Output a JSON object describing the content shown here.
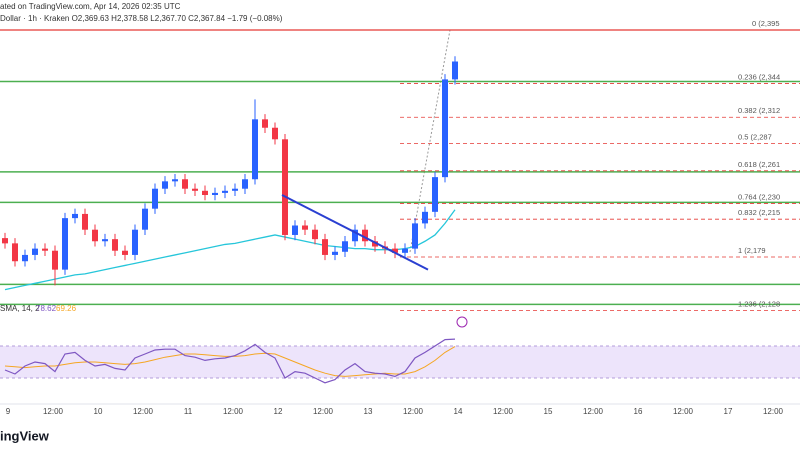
{
  "header": {
    "publisher": "ated on TradingView.com, Apr 14, 2026 02:35 UTC",
    "symbol": "Dollar · 1h · Kraken  O2,369.63 H2,378.58 L2,367.70 C2,367.84 −1.79 (−0.08%)",
    "logo": "ingView"
  },
  "chart_data": {
    "type": "candlestick",
    "up_color": "#2962ff",
    "down_color": "#f23645",
    "ylim": [
      2121,
      2414
    ],
    "open": [
      2197,
      2192,
      2175,
      2181,
      2187,
      2185,
      2167,
      2216,
      2220,
      2205,
      2194,
      2196,
      2185,
      2181,
      2205,
      2225,
      2244,
      2251,
      2253,
      2244,
      2242,
      2238,
      2240,
      2242,
      2244,
      2253,
      2310,
      2302,
      2291,
      2200,
      2209,
      2205,
      2196,
      2181,
      2184,
      2194,
      2205,
      2194,
      2189,
      2187,
      2183,
      2187,
      2211,
      2222,
      2255,
      2348
    ],
    "high": [
      2202,
      2197,
      2186,
      2192,
      2192,
      2190,
      2221,
      2225,
      2225,
      2210,
      2201,
      2201,
      2190,
      2210,
      2230,
      2249,
      2256,
      2258,
      2258,
      2249,
      2247,
      2245,
      2247,
      2249,
      2258,
      2329,
      2315,
      2307,
      2296,
      2214,
      2214,
      2210,
      2201,
      2189,
      2199,
      2210,
      2210,
      2199,
      2194,
      2192,
      2192,
      2216,
      2227,
      2260,
      2353,
      2370
    ],
    "low": [
      2187,
      2170,
      2170,
      2176,
      2180,
      2152,
      2162,
      2211,
      2200,
      2189,
      2189,
      2180,
      2176,
      2176,
      2200,
      2220,
      2239,
      2246,
      2239,
      2237,
      2233,
      2233,
      2235,
      2237,
      2239,
      2248,
      2297,
      2286,
      2195,
      2195,
      2200,
      2191,
      2176,
      2176,
      2179,
      2189,
      2189,
      2184,
      2182,
      2178,
      2178,
      2182,
      2206,
      2217,
      2250,
      2343
    ],
    "close": [
      2192,
      2175,
      2181,
      2187,
      2185,
      2167,
      2216,
      2220,
      2205,
      2194,
      2196,
      2185,
      2181,
      2205,
      2225,
      2244,
      2251,
      2253,
      2244,
      2242,
      2238,
      2240,
      2242,
      2244,
      2253,
      2310,
      2302,
      2291,
      2200,
      2209,
      2205,
      2196,
      2181,
      2184,
      2194,
      2205,
      2194,
      2189,
      2187,
      2183,
      2187,
      2211,
      2222,
      2255,
      2348,
      2365
    ],
    "sma": {
      "color": "#26c6da",
      "values": [
        2148,
        2150,
        2152,
        2154,
        2156,
        2158,
        2160,
        2162,
        2163,
        2165,
        2167,
        2169,
        2171,
        2173,
        2175,
        2177,
        2179,
        2181,
        2183,
        2185,
        2187,
        2189,
        2191,
        2192,
        2194,
        2196,
        2198,
        2200,
        2198,
        2196,
        2194,
        2192,
        2190,
        2189,
        2188,
        2187,
        2187,
        2186,
        2186,
        2186,
        2187,
        2189,
        2194,
        2200,
        2211,
        2224
      ]
    },
    "trendline": {
      "color": "#2a3fd1",
      "values": [
        2238,
        2167
      ]
    },
    "support_levels": {
      "color": "#4caf50",
      "values": [
        2346,
        2260,
        2231,
        2153,
        2134
      ]
    },
    "fib_color": "#e53935",
    "fib_levels": [
      {
        "value": 2395,
        "label": "0 (2,395"
      },
      {
        "value": 2344,
        "label": "0.236 (2,344"
      },
      {
        "value": 2312,
        "label": "0.382 (2,312"
      },
      {
        "value": 2287,
        "label": "0.5 (2,287"
      },
      {
        "value": 2261,
        "label": "0.618 (2,261"
      },
      {
        "value": 2230,
        "label": "0.764 (2,230"
      },
      {
        "value": 2215,
        "label": "0.832 (2,215"
      },
      {
        "value": 2179,
        "label": "1 (2,179"
      },
      {
        "value": 2128,
        "label": "1.236 (2,128"
      }
    ],
    "rsi": {
      "name": "SMA, 14, 2",
      "color": "#7e57c2",
      "ylim": [
        0,
        100
      ],
      "band": [
        30,
        70
      ],
      "band_color": "#ede4fb",
      "values": [
        40,
        35,
        45,
        50,
        48,
        38,
        60,
        62,
        52,
        45,
        47,
        42,
        40,
        55,
        60,
        65,
        66,
        66,
        58,
        56,
        52,
        54,
        55,
        58,
        64,
        72,
        62,
        55,
        30,
        38,
        36,
        30,
        24,
        28,
        40,
        48,
        38,
        36,
        35,
        32,
        38,
        55,
        62,
        70,
        78,
        78.62
      ]
    },
    "rsi_sma": {
      "color": "#f5a623",
      "values": [
        45,
        44,
        43,
        44,
        45,
        45,
        47,
        49,
        50,
        50,
        49,
        48,
        47,
        48,
        50,
        53,
        56,
        58,
        60,
        60,
        59,
        58,
        57,
        57,
        58,
        60,
        61,
        60,
        55,
        50,
        45,
        40,
        36,
        33,
        32,
        33,
        34,
        35,
        36,
        35,
        35,
        38,
        44,
        52,
        62,
        69.26
      ]
    },
    "x_labels": [
      "9",
      "12:00",
      "10",
      "12:00",
      "11",
      "12:00",
      "12",
      "12:00",
      "13",
      "12:00",
      "14",
      "12:00",
      "15",
      "12:00",
      "16",
      "12:00",
      "17",
      "12:00"
    ]
  }
}
